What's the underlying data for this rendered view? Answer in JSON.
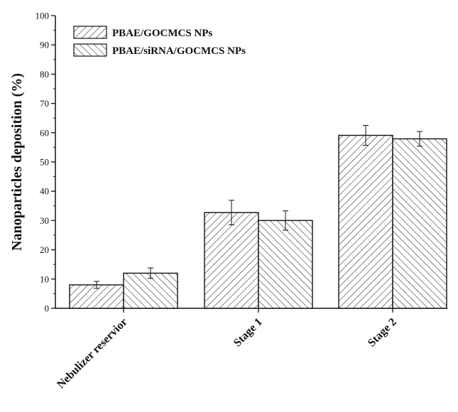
{
  "chart_data": {
    "type": "bar",
    "title": "",
    "xlabel": "",
    "ylabel": "Nanoparticles deposition (%)",
    "ylim": [
      0,
      100
    ],
    "yticks": [
      0,
      10,
      20,
      30,
      40,
      50,
      60,
      70,
      80,
      90,
      100
    ],
    "grid": false,
    "legend_position": "top-left",
    "categories": [
      "Nebulizer reservior",
      "Stage 1",
      "Stage 2"
    ],
    "series": [
      {
        "name": "PBAE/GOCMCS NPs",
        "pattern": "forward-diagonal-hatch",
        "values": [
          8.0,
          32.7,
          59.1
        ],
        "errors": [
          1.2,
          4.2,
          3.4
        ]
      },
      {
        "name": "PBAE/siRNA/GOCMCS NPs",
        "pattern": "backward-diagonal-hatch",
        "values": [
          12.0,
          30.0,
          57.9
        ],
        "errors": [
          1.8,
          3.3,
          2.5
        ]
      }
    ]
  },
  "colors": {
    "axis": "#111111",
    "hatch": "#222222",
    "bar_fill": "#ffffff"
  }
}
